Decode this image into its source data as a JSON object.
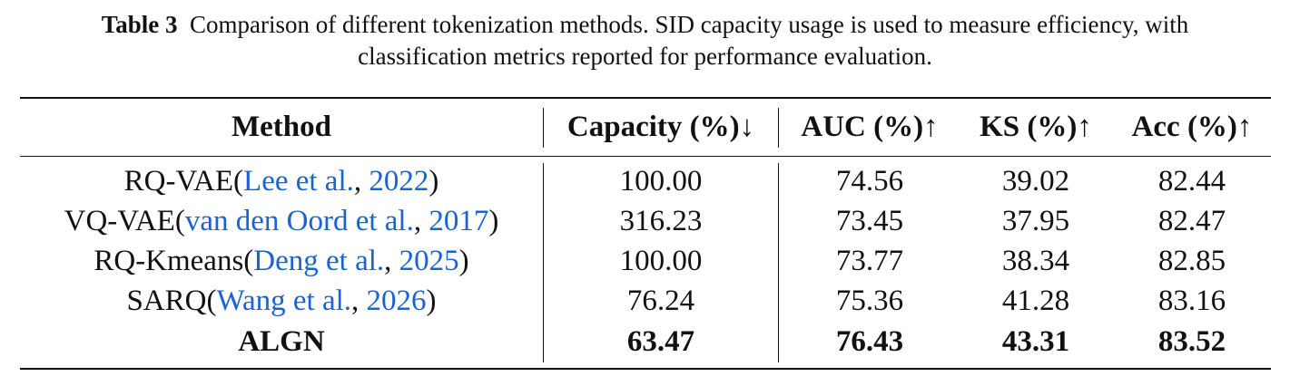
{
  "caption": {
    "label": "Table 3",
    "line1": "Comparison of different tokenization methods. SID capacity usage is used to measure efficiency, with",
    "line2": "classification metrics reported for performance evaluation."
  },
  "headers": [
    "Method",
    "Capacity (%)↓",
    "AUC (%)↑",
    "KS (%)↑",
    "Acc (%)↑"
  ],
  "rows": [
    {
      "name": "RQ-VAE",
      "cite_authors": "Lee et al.",
      "cite_year": "2022",
      "values": [
        "100.00",
        "74.56",
        "39.02",
        "82.44"
      ],
      "bold": false
    },
    {
      "name": "VQ-VAE",
      "cite_authors": "van den Oord et al.",
      "cite_year": "2017",
      "values": [
        "316.23",
        "73.45",
        "37.95",
        "82.47"
      ],
      "bold": false
    },
    {
      "name": "RQ-Kmeans",
      "cite_authors": "Deng et al.",
      "cite_year": "2025",
      "values": [
        "100.00",
        "73.77",
        "38.34",
        "82.85"
      ],
      "bold": false
    },
    {
      "name": "SARQ",
      "cite_authors": "Wang et al.",
      "cite_year": "2026",
      "values": [
        "76.24",
        "75.36",
        "41.28",
        "83.16"
      ],
      "bold": false
    },
    {
      "name": "ALGN",
      "cite_authors": "",
      "cite_year": "",
      "values": [
        "63.47",
        "76.43",
        "43.31",
        "83.52"
      ],
      "bold": true
    }
  ],
  "colors": {
    "text": "#111111",
    "citation_link": "#1a63d6"
  }
}
